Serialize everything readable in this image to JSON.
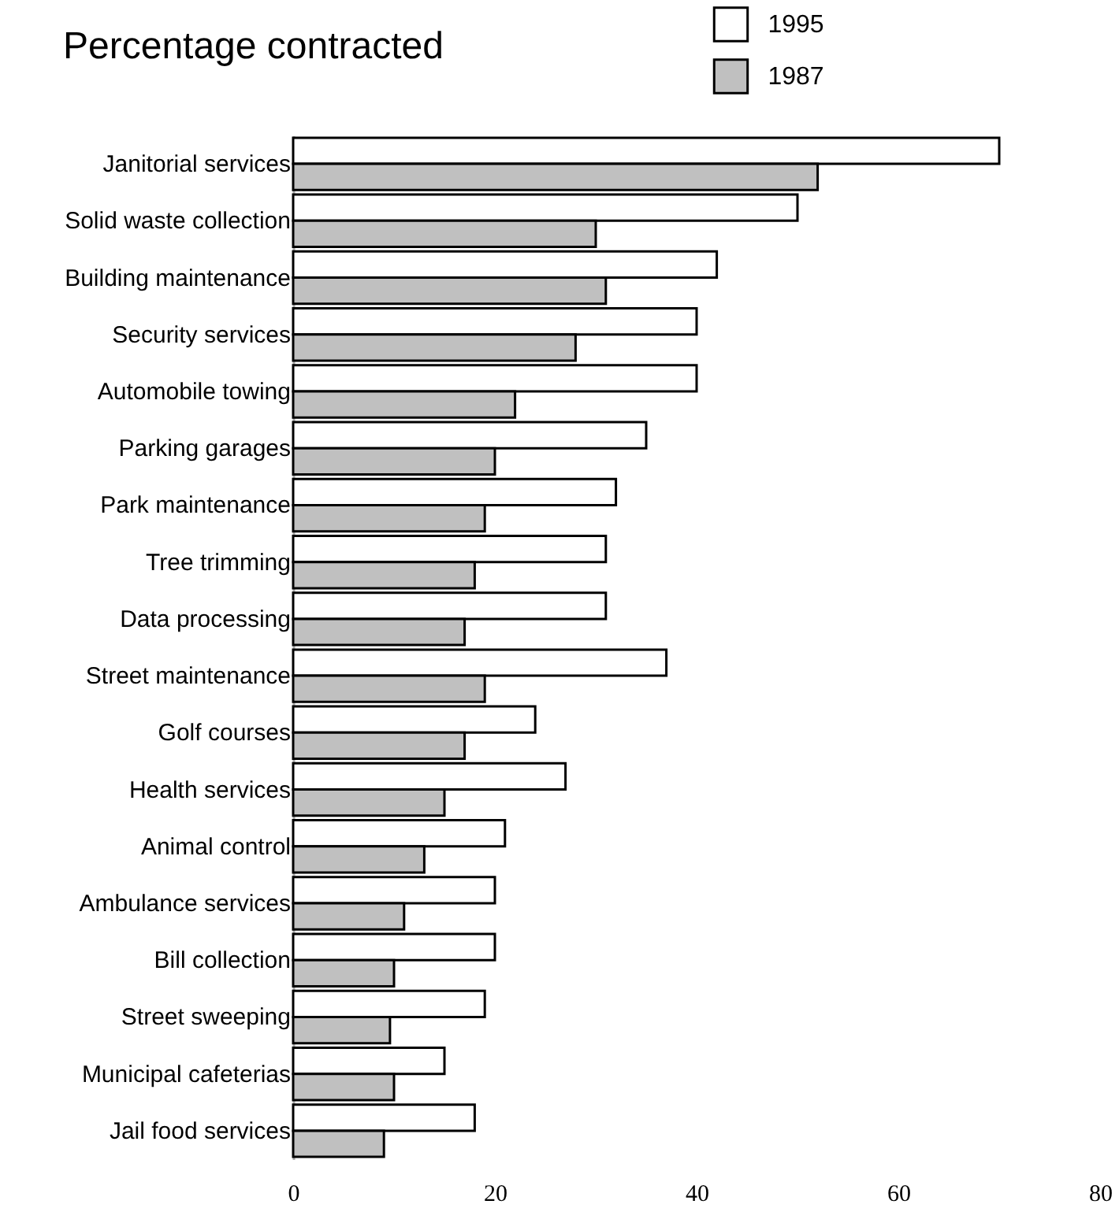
{
  "chart_data": {
    "type": "bar",
    "orientation": "horizontal",
    "title": "Percentage contracted",
    "categories": [
      "Janitorial services",
      "Solid waste collection",
      "Building maintenance",
      "Security services",
      "Automobile towing",
      "Parking garages",
      "Park maintenance",
      "Tree trimming",
      "Data processing",
      "Street maintenance",
      "Golf courses",
      "Health services",
      "Animal control",
      "Ambulance services",
      "Bill collection",
      "Street sweeping",
      "Municipal cafeterias",
      "Jail food services"
    ],
    "series": [
      {
        "name": "1995",
        "color": "#ffffff",
        "values": [
          70,
          50,
          42,
          40,
          40,
          35,
          32,
          31,
          31,
          37,
          24,
          27,
          21,
          20,
          20,
          19,
          15,
          18
        ]
      },
      {
        "name": "1987",
        "color": "#c0c0c0",
        "values": [
          52,
          30,
          31,
          28,
          22,
          20,
          19,
          18,
          17,
          19,
          17,
          15,
          13,
          11,
          10,
          9.6,
          10,
          9
        ]
      }
    ],
    "xlim": [
      0,
      80
    ],
    "xticks": [
      0,
      20,
      40,
      60,
      80
    ],
    "grid": false,
    "legend": "top right"
  }
}
